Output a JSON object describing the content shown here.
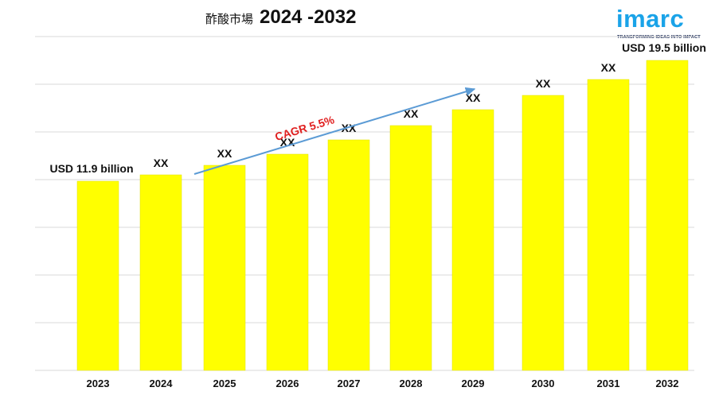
{
  "title": {
    "prefix": "酢酸市場",
    "years": "2024 -2032"
  },
  "logo": {
    "word": "imarc",
    "tagline": "TRANSFORMING IDEAS INTO IMPACT"
  },
  "colors": {
    "bar": "#ffff00",
    "bar_edge": "#e0e000",
    "arrow": "#5b9bd5",
    "cagr_text": "#e02020",
    "grid": "#d9d9d9",
    "logo": "#1aa3e8"
  },
  "chart_data": {
    "type": "bar",
    "categories": [
      "2023",
      "2024",
      "2025",
      "2026",
      "2027",
      "2028",
      "2029",
      "2030",
      "2031",
      "2032"
    ],
    "values": [
      11.9,
      12.3,
      12.9,
      13.6,
      14.5,
      15.4,
      16.4,
      17.3,
      18.3,
      19.5
    ],
    "data_labels": [
      "USD 11.9 billion",
      "XX",
      "XX",
      "XX",
      "XX",
      "XX",
      "XX",
      "XX",
      "XX",
      "USD 19.5 billion"
    ],
    "ylim": [
      0,
      21
    ],
    "grid": true,
    "legend": "none",
    "annotation": {
      "text": "CAGR 5.5%",
      "arrow": true
    }
  }
}
